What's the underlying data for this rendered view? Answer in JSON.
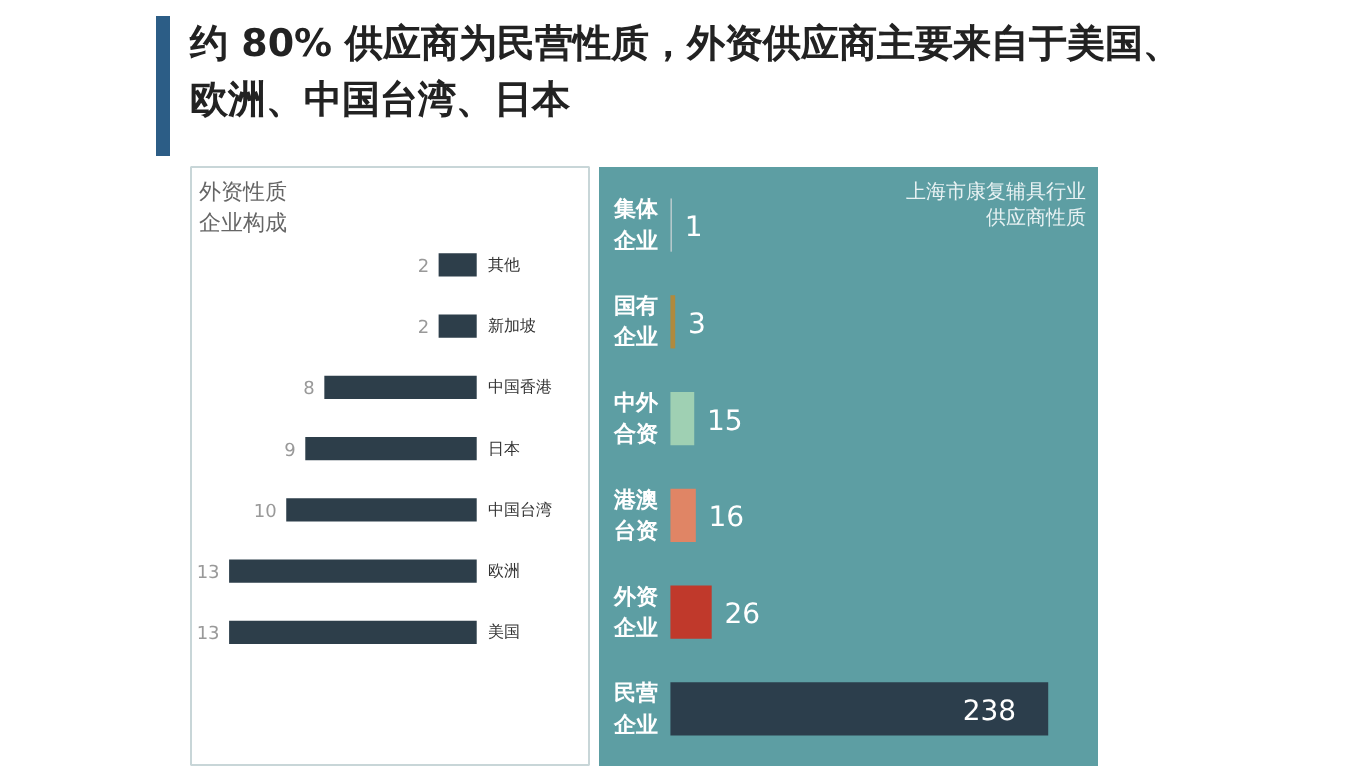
{
  "chart_data": [
    {
      "type": "bar",
      "orientation": "horizontal",
      "title": "约 80% 供应商为民营性质，外资供应商主要来自于美国、欧洲、中国台湾、日本",
      "subtitle": "外资性质企业构成",
      "categories": [
        "其他",
        "新加坡",
        "中国香港",
        "日本",
        "中国台湾",
        "欧洲",
        "美国"
      ],
      "values": [
        2,
        2,
        8,
        9,
        10,
        13,
        13
      ],
      "color": "#2d3e4a",
      "data_labels": true
    },
    {
      "type": "bar",
      "orientation": "horizontal",
      "title": "上海市康复辅具行业供应商性质",
      "categories": [
        "集体企业",
        "国有企业",
        "中外合资",
        "港澳台资",
        "外资企业",
        "民营企业"
      ],
      "values": [
        1,
        3,
        15,
        16,
        26,
        238
      ],
      "colors": [
        "#b5c8cb",
        "#b08a3e",
        "#9fd0b3",
        "#e08565",
        "#c0392b",
        "#2c3e4c"
      ],
      "data_labels": true
    }
  ]
}
